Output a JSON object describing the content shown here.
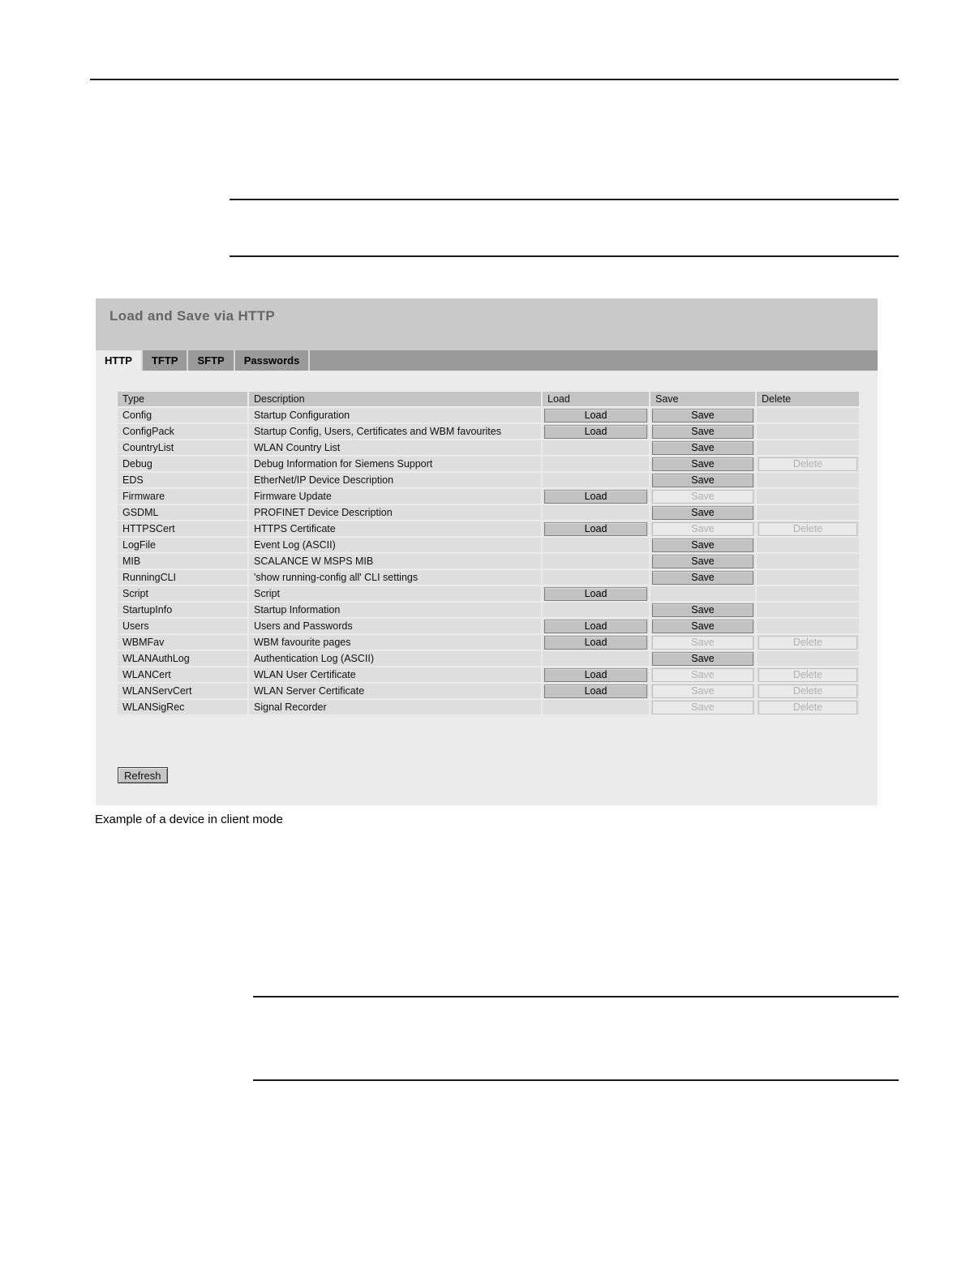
{
  "page": {
    "caption": "Example of a device in client mode"
  },
  "panel": {
    "title": "Load and Save via HTTP",
    "tabs": [
      {
        "label": "HTTP",
        "active": true
      },
      {
        "label": "TFTP",
        "active": false
      },
      {
        "label": "SFTP",
        "active": false
      },
      {
        "label": "Passwords",
        "active": false
      }
    ],
    "refresh_label": "Refresh",
    "colors": {
      "title_bar_bg": "#c9c9c9",
      "title_text": "#666666",
      "tab_bar_bg": "#9a9a9a",
      "active_tab_bg": "#ececec",
      "content_bg": "#ebebeb",
      "header_cell_bg": "#c5c5c5",
      "row_cell_bg": "#dedede",
      "button_bg": "#c2c2c2",
      "button_disabled_bg": "#e9e9e9",
      "button_disabled_text": "#b2b2b2"
    },
    "table": {
      "headers": [
        "Type",
        "Description",
        "Load",
        "Save",
        "Delete"
      ],
      "button_labels": {
        "load": "Load",
        "save": "Save",
        "delete": "Delete"
      },
      "rows": [
        {
          "type": "Config",
          "description": "Startup Configuration",
          "load": "enabled",
          "save": "enabled",
          "delete": "none"
        },
        {
          "type": "ConfigPack",
          "description": "Startup Config, Users, Certificates and WBM favourites",
          "load": "enabled",
          "save": "enabled",
          "delete": "none"
        },
        {
          "type": "CountryList",
          "description": "WLAN Country List",
          "load": "none",
          "save": "enabled",
          "delete": "none"
        },
        {
          "type": "Debug",
          "description": "Debug Information for Siemens Support",
          "load": "none",
          "save": "enabled",
          "delete": "disabled"
        },
        {
          "type": "EDS",
          "description": "EtherNet/IP Device Description",
          "load": "none",
          "save": "enabled",
          "delete": "none"
        },
        {
          "type": "Firmware",
          "description": "Firmware Update",
          "load": "enabled",
          "save": "disabled",
          "delete": "none"
        },
        {
          "type": "GSDML",
          "description": "PROFINET Device Description",
          "load": "none",
          "save": "enabled",
          "delete": "none"
        },
        {
          "type": "HTTPSCert",
          "description": "HTTPS Certificate",
          "load": "enabled",
          "save": "disabled",
          "delete": "disabled"
        },
        {
          "type": "LogFile",
          "description": "Event Log (ASCII)",
          "load": "none",
          "save": "enabled",
          "delete": "none"
        },
        {
          "type": "MIB",
          "description": "SCALANCE W MSPS MIB",
          "load": "none",
          "save": "enabled",
          "delete": "none"
        },
        {
          "type": "RunningCLI",
          "description": "'show running-config all' CLI settings",
          "load": "none",
          "save": "enabled",
          "delete": "none"
        },
        {
          "type": "Script",
          "description": "Script",
          "load": "enabled",
          "save": "none",
          "delete": "none"
        },
        {
          "type": "StartupInfo",
          "description": "Startup Information",
          "load": "none",
          "save": "enabled",
          "delete": "none"
        },
        {
          "type": "Users",
          "description": "Users and Passwords",
          "load": "enabled",
          "save": "enabled",
          "delete": "none"
        },
        {
          "type": "WBMFav",
          "description": "WBM favourite pages",
          "load": "enabled",
          "save": "disabled",
          "delete": "disabled"
        },
        {
          "type": "WLANAuthLog",
          "description": "Authentication Log (ASCII)",
          "load": "none",
          "save": "enabled",
          "delete": "none"
        },
        {
          "type": "WLANCert",
          "description": "WLAN User Certificate",
          "load": "enabled",
          "save": "disabled",
          "delete": "disabled"
        },
        {
          "type": "WLANServCert",
          "description": "WLAN Server Certificate",
          "load": "enabled",
          "save": "disabled",
          "delete": "disabled"
        },
        {
          "type": "WLANSigRec",
          "description": "Signal Recorder",
          "load": "none",
          "save": "disabled",
          "delete": "disabled"
        }
      ]
    }
  }
}
